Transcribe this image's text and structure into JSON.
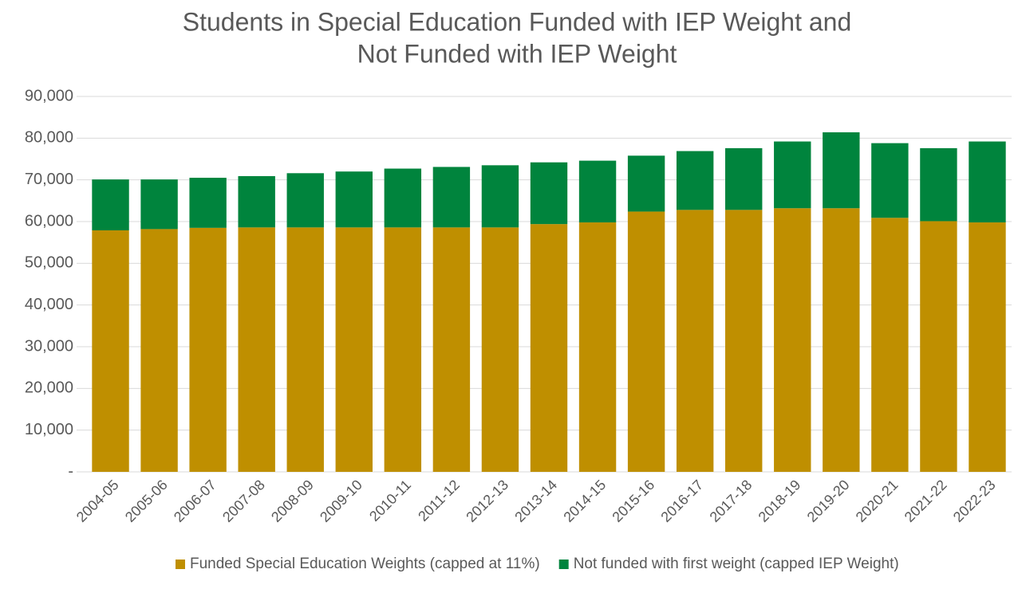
{
  "chart_data": {
    "type": "stacked_bar",
    "title": [
      "Students in Special Education Funded with IEP Weight and",
      "Not Funded with IEP Weight"
    ],
    "categories": [
      "2004-05",
      "2005-06",
      "2006-07",
      "2007-08",
      "2008-09",
      "2009-10",
      "2010-11",
      "2011-12",
      "2012-13",
      "2013-14",
      "2014-15",
      "2015-16",
      "2016-17",
      "2017-18",
      "2018-19",
      "2019-20",
      "2020-21",
      "2021-22",
      "2022-23"
    ],
    "series": [
      {
        "name": "Funded Special Education Weights (capped at 11%)",
        "color": "#bf8f00",
        "values": [
          57900,
          58200,
          58500,
          58600,
          58600,
          58600,
          58600,
          58600,
          58600,
          59400,
          59800,
          62400,
          62800,
          62800,
          63200,
          63200,
          60900,
          60100,
          59800
        ]
      },
      {
        "name": "Not funded with first weight (capped IEP Weight)",
        "color": "#00843d",
        "values": [
          12200,
          11900,
          12000,
          12300,
          13000,
          13400,
          14100,
          14500,
          14900,
          14800,
          14800,
          13400,
          14100,
          14800,
          16000,
          18200,
          17900,
          17500,
          19400
        ]
      }
    ],
    "ylim": [
      0,
      90000
    ],
    "yticks": [
      {
        "value": 0,
        "label": "-"
      },
      {
        "value": 10000,
        "label": "10,000"
      },
      {
        "value": 20000,
        "label": "20,000"
      },
      {
        "value": 30000,
        "label": "30,000"
      },
      {
        "value": 40000,
        "label": "40,000"
      },
      {
        "value": 50000,
        "label": "50,000"
      },
      {
        "value": 60000,
        "label": "60,000"
      },
      {
        "value": 70000,
        "label": "70,000"
      },
      {
        "value": 80000,
        "label": "80,000"
      },
      {
        "value": 90000,
        "label": "90,000"
      }
    ],
    "grid": true,
    "legend": "bottom"
  }
}
